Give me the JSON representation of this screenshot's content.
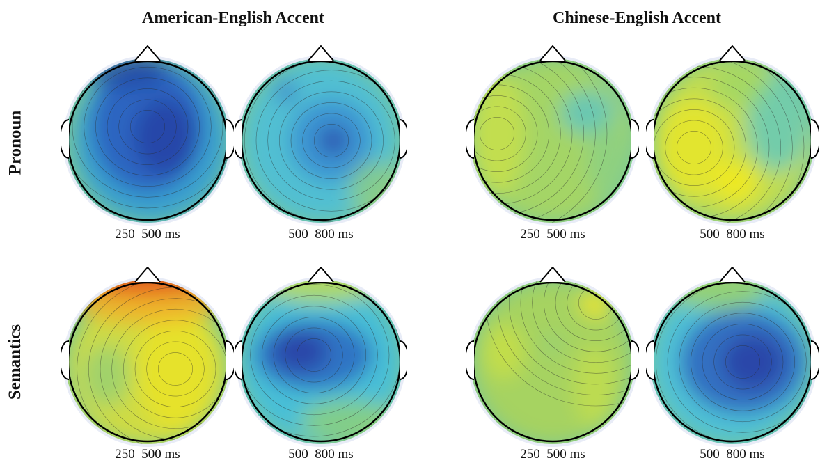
{
  "figure": {
    "column_groups": [
      {
        "title": "American-English Accent"
      },
      {
        "title": "Chinese-English Accent"
      }
    ],
    "rows": [
      {
        "label": "Pronoun"
      },
      {
        "label": "Semantics"
      }
    ],
    "time_windows": [
      "250–500 ms",
      "500–800 ms"
    ],
    "maps": [
      {
        "row": "Pronoun",
        "group": "American-English Accent",
        "window": "250–500 ms",
        "pattern": "strong broad negativity, center-left",
        "color": "#2b4fb0"
      },
      {
        "row": "Pronoun",
        "group": "American-English Accent",
        "window": "500–800 ms",
        "pattern": "moderate central-right negativity",
        "color": "#3a7fc8"
      },
      {
        "row": "Pronoun",
        "group": "Chinese-English Accent",
        "window": "250–500 ms",
        "pattern": "near zero, slight positive left",
        "color": "#a9d45a"
      },
      {
        "row": "Pronoun",
        "group": "Chinese-English Accent",
        "window": "500–800 ms",
        "pattern": "positive left and posterior",
        "color": "#e5e52e"
      },
      {
        "row": "Semantics",
        "group": "American-English Accent",
        "window": "250–500 ms",
        "pattern": "strong frontal positivity",
        "color": "#e2501d"
      },
      {
        "row": "Semantics",
        "group": "American-English Accent",
        "window": "500–800 ms",
        "pattern": "central negativity",
        "color": "#2f4fb0"
      },
      {
        "row": "Semantics",
        "group": "Chinese-English Accent",
        "window": "250–500 ms",
        "pattern": "near zero, slight positive right frontal",
        "color": "#b8d84e"
      },
      {
        "row": "Semantics",
        "group": "Chinese-English Accent",
        "window": "500–800 ms",
        "pattern": "strong central-right negativity",
        "color": "#2b4fb0"
      }
    ]
  },
  "colors": {
    "background_ring": "#e8ecf7",
    "neutral_map": "#78c79a",
    "head_outline": "#000000"
  }
}
